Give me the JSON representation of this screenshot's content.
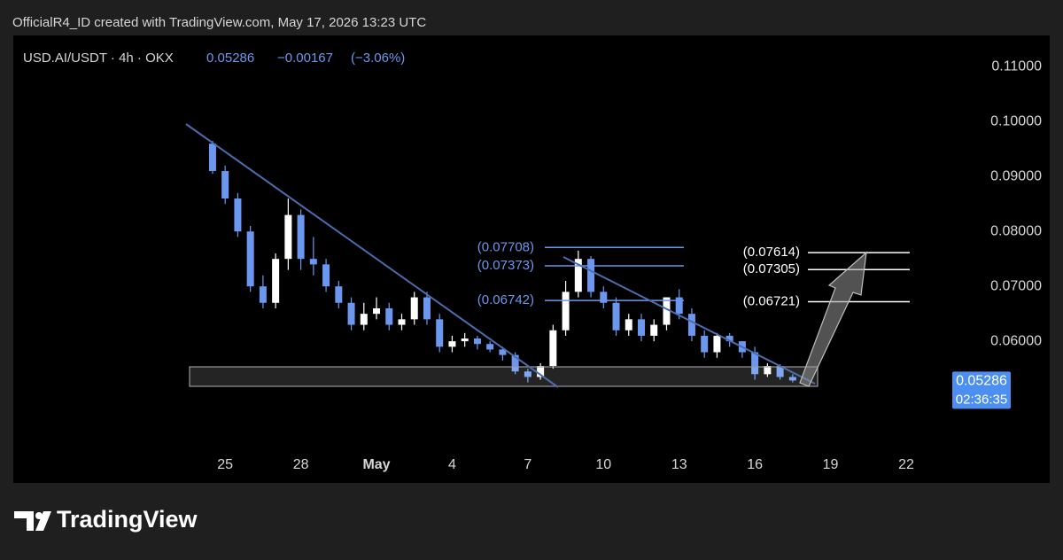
{
  "chart_data": {
    "type": "candlestick",
    "caption": "OfficialR4_ID created with TradingView.com, May 17, 2026 13:23 UTC",
    "symbol": "USD.AI/USDT · 4h · OKX",
    "last_price": 0.05286,
    "change": {
      "value": -0.00167,
      "label": "−0.00167"
    },
    "change_pct": {
      "value": -3.06,
      "label": "(−3.06%)"
    },
    "countdown": "02:36:35",
    "brand": "TradingView",
    "up_color": "#ffffff",
    "down_color": "#6b98ee",
    "xlim": [
      16.6,
      53.3
    ],
    "xticks": [
      25,
      28,
      {
        "value": 31,
        "label": "May"
      },
      {
        "value": 34,
        "label": "4"
      },
      {
        "value": 37,
        "label": "7"
      },
      {
        "value": 40,
        "label": "10"
      },
      {
        "value": 43,
        "label": "13"
      },
      {
        "value": 46,
        "label": "16"
      },
      {
        "value": 49,
        "label": "19"
      },
      {
        "value": 52,
        "label": "22"
      }
    ],
    "ylim": [
      0.0342,
      0.1157
    ],
    "yticks": [
      {
        "value": 0.06,
        "label": "0.06000"
      },
      {
        "value": 0.07,
        "label": "0.07000"
      },
      {
        "value": 0.08,
        "label": "0.08000"
      },
      {
        "value": 0.09,
        "label": "0.09000"
      },
      {
        "value": 0.1,
        "label": "0.10000"
      },
      {
        "value": 0.11,
        "label": "0.11000"
      }
    ],
    "x": [
      24.5,
      25,
      25.5,
      26,
      26.5,
      27,
      27.5,
      28,
      28.5,
      29,
      29.5,
      30,
      30.5,
      31,
      31.5,
      32,
      32.5,
      33,
      33.5,
      34,
      34.5,
      35,
      35.5,
      36,
      36.5,
      37,
      37.5,
      38,
      38.5,
      39,
      39.5,
      40,
      40.5,
      41,
      41.5,
      42,
      42.5,
      43,
      43.5,
      44,
      44.5,
      45,
      45.5,
      46,
      46.5,
      47,
      47.5
    ],
    "ohlc": [
      [
        0.096,
        0.0965,
        0.0905,
        0.091
      ],
      [
        0.091,
        0.092,
        0.085,
        0.086
      ],
      [
        0.086,
        0.087,
        0.079,
        0.08
      ],
      [
        0.08,
        0.081,
        0.069,
        0.07
      ],
      [
        0.07,
        0.072,
        0.066,
        0.067
      ],
      [
        0.067,
        0.076,
        0.066,
        0.075
      ],
      [
        0.075,
        0.086,
        0.073,
        0.083
      ],
      [
        0.083,
        0.084,
        0.073,
        0.075
      ],
      [
        0.075,
        0.079,
        0.072,
        0.074
      ],
      [
        0.074,
        0.075,
        0.069,
        0.07
      ],
      [
        0.07,
        0.071,
        0.066,
        0.067
      ],
      [
        0.067,
        0.068,
        0.062,
        0.063
      ],
      [
        0.063,
        0.067,
        0.062,
        0.065
      ],
      [
        0.065,
        0.068,
        0.064,
        0.066
      ],
      [
        0.066,
        0.067,
        0.062,
        0.063
      ],
      [
        0.063,
        0.065,
        0.062,
        0.064
      ],
      [
        0.064,
        0.069,
        0.063,
        0.068
      ],
      [
        0.068,
        0.069,
        0.063,
        0.064
      ],
      [
        0.064,
        0.065,
        0.058,
        0.059
      ],
      [
        0.059,
        0.061,
        0.058,
        0.06
      ],
      [
        0.06,
        0.0615,
        0.059,
        0.0605
      ],
      [
        0.0605,
        0.061,
        0.0585,
        0.0595
      ],
      [
        0.0595,
        0.06,
        0.058,
        0.0585
      ],
      [
        0.0585,
        0.059,
        0.0565,
        0.0575
      ],
      [
        0.0575,
        0.058,
        0.054,
        0.0545
      ],
      [
        0.0545,
        0.055,
        0.0525,
        0.0535
      ],
      [
        0.0535,
        0.056,
        0.053,
        0.0555
      ],
      [
        0.0555,
        0.063,
        0.055,
        0.062
      ],
      [
        0.062,
        0.071,
        0.061,
        0.069
      ],
      [
        0.069,
        0.0765,
        0.068,
        0.075
      ],
      [
        0.075,
        0.0755,
        0.068,
        0.069
      ],
      [
        0.069,
        0.07,
        0.066,
        0.067
      ],
      [
        0.067,
        0.068,
        0.061,
        0.062
      ],
      [
        0.062,
        0.065,
        0.061,
        0.064
      ],
      [
        0.064,
        0.065,
        0.06,
        0.061
      ],
      [
        0.061,
        0.064,
        0.06,
        0.063
      ],
      [
        0.063,
        0.068,
        0.062,
        0.068
      ],
      [
        0.068,
        0.0695,
        0.064,
        0.065
      ],
      [
        0.065,
        0.066,
        0.06,
        0.061
      ],
      [
        0.061,
        0.062,
        0.057,
        0.058
      ],
      [
        0.058,
        0.0615,
        0.057,
        0.061
      ],
      [
        0.061,
        0.0615,
        0.059,
        0.06
      ],
      [
        0.06,
        0.06,
        0.057,
        0.058
      ],
      [
        0.058,
        0.059,
        0.053,
        0.054
      ],
      [
        0.054,
        0.056,
        0.0535,
        0.0555
      ],
      [
        0.0555,
        0.0558,
        0.053,
        0.0535
      ],
      [
        0.0535,
        0.054,
        0.0525,
        0.05286
      ]
    ],
    "levels_left": [
      {
        "value": 0.07708,
        "label": "(0.07708)"
      },
      {
        "value": 0.07373,
        "label": "(0.07373)"
      },
      {
        "value": 0.06742,
        "label": "(0.06742)"
      }
    ],
    "levels_right": [
      {
        "value": 0.07614,
        "label": "(0.07614)"
      },
      {
        "value": 0.07305,
        "label": "(0.07305)"
      },
      {
        "value": 0.06721,
        "label": "(0.06721)"
      }
    ]
  }
}
